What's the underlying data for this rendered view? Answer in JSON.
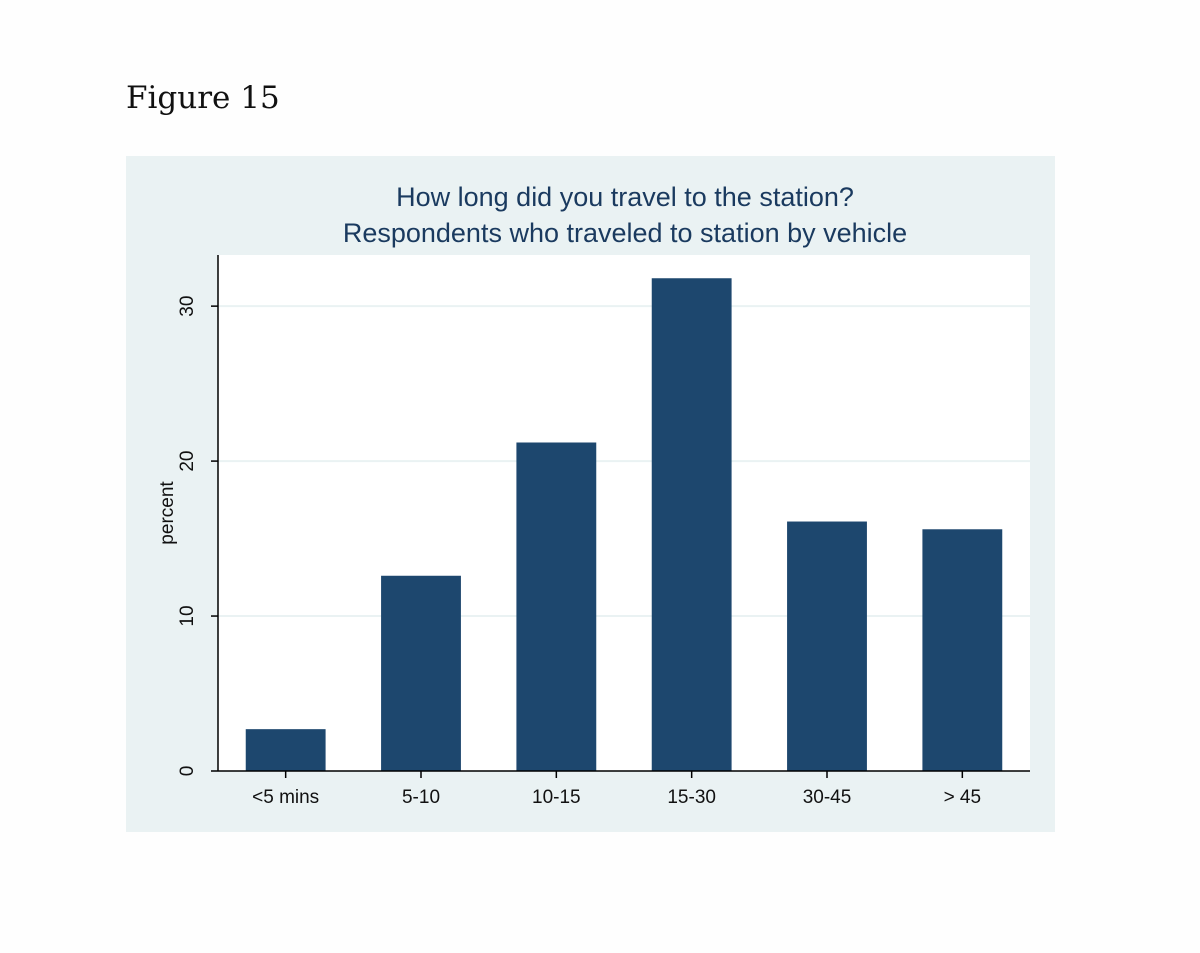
{
  "figure_caption": "Figure 15",
  "chart_data": {
    "type": "bar",
    "title": "How long did you travel to the station?",
    "subtitle": "Respondents who traveled to station by vehicle",
    "ylabel": "percent",
    "xlabel": "",
    "categories": [
      "<5 mins",
      "5-10",
      "10-15",
      "15-30",
      "30-45",
      "> 45"
    ],
    "values": [
      2.7,
      12.6,
      21.2,
      31.8,
      16.1,
      15.6
    ],
    "ylim": [
      0,
      33.3
    ],
    "yticks": [
      0,
      10,
      20,
      30
    ],
    "grid": true,
    "colors": {
      "bar": "#1d476e",
      "plot_bg": "#ffffff",
      "panel_bg": "#eaf2f3",
      "grid": "#eaf2f3",
      "title": "#1a3a5f"
    }
  }
}
